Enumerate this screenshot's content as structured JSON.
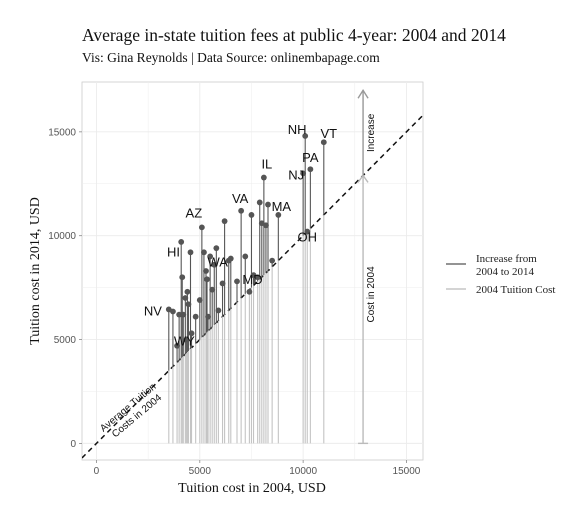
{
  "chart_data": {
    "type": "scatter",
    "title": "Average in-state tuition fees at public 4-year: 2004 and 2014",
    "subtitle": "Vis: Gina Reynolds | Data Source: onlinembapage.com",
    "xlabel": "Tuition cost in 2004, USD",
    "ylabel": "Tuition cost in 2014, USD",
    "xlim": [
      -700,
      15800
    ],
    "ylim": [
      -800,
      17400
    ],
    "xticks": [
      0,
      5000,
      10000,
      15000
    ],
    "yticks": [
      0,
      5000,
      10000,
      15000
    ],
    "xtick_labels": [
      "0",
      "5000",
      "10000",
      "15000"
    ],
    "ytick_labels": [
      "0",
      "5000",
      "10000",
      "15000"
    ],
    "grid": true,
    "legend_position": "right",
    "legend": [
      {
        "label_line1": "Increase from",
        "label_line2": "2004 to 2014",
        "color": "#555555"
      },
      {
        "label_line1": "2004 Tuition Cost",
        "label_line2": "",
        "color": "#bbbbbb"
      }
    ],
    "reference_line": {
      "label_line1": "Average Tuition",
      "label_line2": "Costs in 2004"
    },
    "annotation": {
      "x": 12900,
      "y_2004": 12900,
      "y_top": 17000,
      "increase_label": "Increase",
      "cost_label": "Cost in 2004"
    },
    "points": [
      {
        "x": 3500,
        "y": 6450,
        "label": ""
      },
      {
        "x": 3700,
        "y": 6350,
        "label": "NV"
      },
      {
        "x": 3900,
        "y": 4700,
        "label": ""
      },
      {
        "x": 4000,
        "y": 6200,
        "label": ""
      },
      {
        "x": 4100,
        "y": 9700,
        "label": ""
      },
      {
        "x": 4150,
        "y": 8000,
        "label": ""
      },
      {
        "x": 4200,
        "y": 6200,
        "label": ""
      },
      {
        "x": 4300,
        "y": 7000,
        "label": ""
      },
      {
        "x": 4350,
        "y": 5000,
        "label": "WY"
      },
      {
        "x": 4400,
        "y": 7300,
        "label": ""
      },
      {
        "x": 4450,
        "y": 6700,
        "label": ""
      },
      {
        "x": 4550,
        "y": 9200,
        "label": "HI"
      },
      {
        "x": 4600,
        "y": 5300,
        "label": ""
      },
      {
        "x": 4800,
        "y": 6100,
        "label": ""
      },
      {
        "x": 5000,
        "y": 6900,
        "label": ""
      },
      {
        "x": 5100,
        "y": 10400,
        "label": "AZ"
      },
      {
        "x": 5200,
        "y": 9200,
        "label": ""
      },
      {
        "x": 5300,
        "y": 8300,
        "label": ""
      },
      {
        "x": 5350,
        "y": 7900,
        "label": ""
      },
      {
        "x": 5400,
        "y": 6100,
        "label": ""
      },
      {
        "x": 5500,
        "y": 9000,
        "label": ""
      },
      {
        "x": 5600,
        "y": 7400,
        "label": ""
      },
      {
        "x": 5700,
        "y": 8600,
        "label": ""
      },
      {
        "x": 5800,
        "y": 9400,
        "label": ""
      },
      {
        "x": 5900,
        "y": 6400,
        "label": ""
      },
      {
        "x": 6100,
        "y": 7700,
        "label": ""
      },
      {
        "x": 6200,
        "y": 10700,
        "label": ""
      },
      {
        "x": 6400,
        "y": 8800,
        "label": "WA"
      },
      {
        "x": 6500,
        "y": 8900,
        "label": ""
      },
      {
        "x": 6800,
        "y": 7800,
        "label": ""
      },
      {
        "x": 7000,
        "y": 11200,
        "label": "VA"
      },
      {
        "x": 7200,
        "y": 9000,
        "label": ""
      },
      {
        "x": 7400,
        "y": 7300,
        "label": ""
      },
      {
        "x": 7500,
        "y": 11000,
        "label": ""
      },
      {
        "x": 7600,
        "y": 8100,
        "label": "MD"
      },
      {
        "x": 7800,
        "y": 8000,
        "label": ""
      },
      {
        "x": 7900,
        "y": 11600,
        "label": ""
      },
      {
        "x": 8000,
        "y": 10600,
        "label": ""
      },
      {
        "x": 8100,
        "y": 12800,
        "label": "IL"
      },
      {
        "x": 8200,
        "y": 10500,
        "label": ""
      },
      {
        "x": 8300,
        "y": 11500,
        "label": ""
      },
      {
        "x": 8500,
        "y": 8800,
        "label": ""
      },
      {
        "x": 8800,
        "y": 11000,
        "label": "MA"
      },
      {
        "x": 10000,
        "y": 13000,
        "label": "NJ"
      },
      {
        "x": 10100,
        "y": 14800,
        "label": "NH"
      },
      {
        "x": 10200,
        "y": 10200,
        "label": "OH"
      },
      {
        "x": 10350,
        "y": 13200,
        "label": "PA"
      },
      {
        "x": 11000,
        "y": 14500,
        "label": "VT"
      }
    ]
  }
}
